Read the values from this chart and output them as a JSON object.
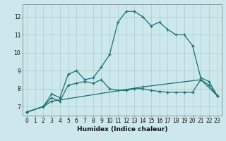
{
  "xlabel": "Humidex (Indice chaleur)",
  "bg_color": "#cce8ec",
  "grid_color": "#aacccc",
  "line_color": "#1a7070",
  "xlim": [
    -0.5,
    23.5
  ],
  "ylim": [
    6.5,
    12.7
  ],
  "xticks": [
    0,
    1,
    2,
    3,
    4,
    5,
    6,
    7,
    8,
    9,
    10,
    11,
    12,
    13,
    14,
    15,
    16,
    17,
    18,
    19,
    20,
    21,
    22,
    23
  ],
  "yticks": [
    7,
    8,
    9,
    10,
    11,
    12
  ],
  "series": [
    {
      "x": [
        0,
        2,
        3,
        4,
        5,
        6,
        7,
        8,
        9,
        10,
        11,
        12,
        13,
        14,
        15,
        16,
        17,
        18,
        19,
        20,
        21,
        22,
        23
      ],
      "y": [
        6.7,
        7.0,
        7.7,
        7.5,
        8.8,
        9.0,
        8.5,
        8.6,
        9.2,
        9.9,
        11.7,
        12.3,
        12.3,
        12.0,
        11.5,
        11.7,
        11.3,
        11.0,
        11.0,
        10.4,
        8.6,
        8.4,
        7.6
      ]
    },
    {
      "x": [
        0,
        2,
        3,
        4,
        5,
        6,
        7,
        8,
        9,
        10,
        11,
        12,
        13,
        14,
        15,
        16,
        17,
        18,
        19,
        20,
        21,
        22,
        23
      ],
      "y": [
        6.7,
        7.0,
        7.5,
        7.3,
        8.2,
        8.3,
        8.4,
        8.3,
        8.5,
        8.0,
        7.9,
        7.9,
        8.0,
        8.0,
        7.9,
        7.85,
        7.8,
        7.8,
        7.8,
        7.8,
        8.5,
        8.2,
        7.6
      ]
    },
    {
      "x": [
        0,
        2,
        3,
        14,
        21,
        23
      ],
      "y": [
        6.7,
        7.0,
        7.3,
        8.1,
        8.5,
        7.6
      ]
    }
  ],
  "tick_fontsize": 5.5,
  "xlabel_fontsize": 6.5
}
